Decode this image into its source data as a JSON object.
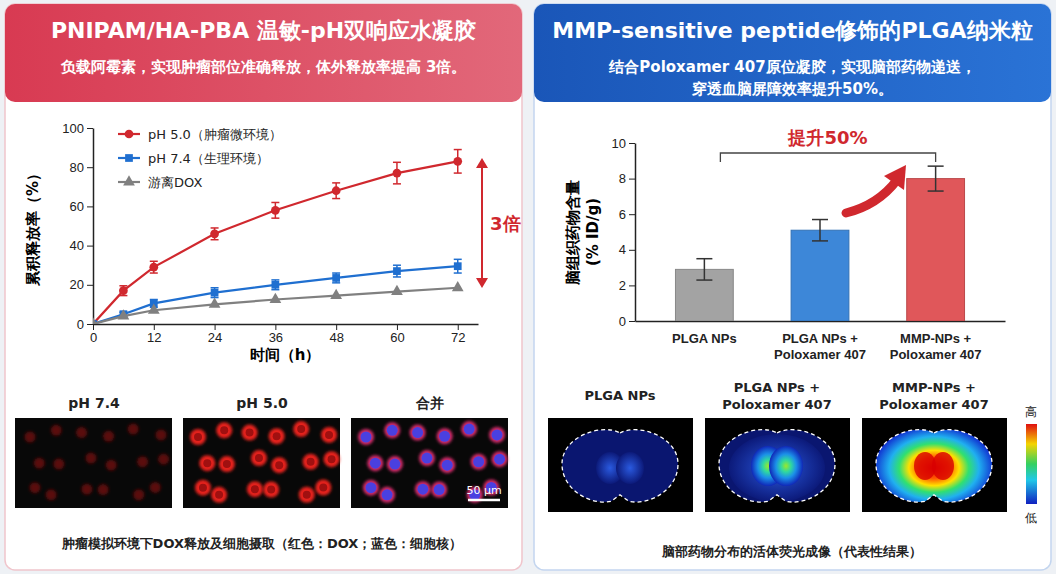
{
  "panels": [
    {
      "title": "PNIPAM/HA-PBA 温敏-pH双响应水凝胶",
      "subtitle": [
        "负载阿霉素，实现肿瘤部位准确释放，体外释放率提高 3倍。"
      ],
      "image_labels": [
        "pH 7.4",
        "pH 5.0",
        "合并"
      ],
      "scale_bar": "50 μm",
      "caption": "肿瘤模拟环境下DOX释放及细胞摄取（红色：DOX；蓝色：细胞核）"
    },
    {
      "title": "MMP-sensitive peptide修饰的PLGA纳米粒",
      "subtitle": [
        "结合Poloxamer 407原位凝胶，实现脑部药物递送，",
        "穿透血脑屏障效率提升50%。"
      ],
      "image_labels": [
        "PLGA NPs",
        "PLGA NPs +\nPoloxamer 407",
        "MMP-NPs +\nPoloxamer 407"
      ],
      "colorbar_labels": [
        "高",
        "低"
      ],
      "caption": "脑部药物分布的活体荧光成像（代表性结果）"
    }
  ],
  "chart_data": [
    {
      "type": "line",
      "x_label": "时间（h）",
      "y_label": "累积释放率（%）",
      "annotation": "3倍",
      "x": [
        0,
        6,
        12,
        24,
        36,
        48,
        60,
        72
      ],
      "xlim": [
        0,
        76
      ],
      "xticks": [
        0,
        12,
        24,
        36,
        48,
        60,
        72
      ],
      "ylim": [
        0,
        100
      ],
      "yticks": [
        0,
        20,
        40,
        60,
        80,
        100
      ],
      "grid": false,
      "legend": "upper left",
      "series": [
        {
          "name": "pH 5.0（肿瘤微环境）",
          "color": "#d0282e",
          "marker": "circle",
          "values": [
            0,
            17,
            29,
            46,
            58,
            68,
            77,
            83
          ],
          "errors": [
            0,
            2.5,
            3,
            3,
            4,
            4,
            5.5,
            6
          ]
        },
        {
          "name": "pH 7.4（生理环境）",
          "color": "#1f6fd0",
          "marker": "square",
          "values": [
            0,
            5,
            10.5,
            16,
            20,
            23.5,
            27,
            29.5
          ],
          "errors": [
            0,
            1,
            2,
            2.5,
            2.5,
            2.5,
            3,
            3.5
          ]
        },
        {
          "name": "游离DOX",
          "color": "#808080",
          "marker": "triangle",
          "values": [
            0,
            4,
            7,
            10,
            12.5,
            14.5,
            16.5,
            18.5
          ]
        }
      ]
    },
    {
      "type": "bar",
      "y_label": "脑组织药物含量\n(% ID/g)",
      "annotation": "提升50%",
      "categories": [
        "PLGA NPs",
        "PLGA NPs +\nPoloxamer 407",
        "MMP-NPs +\nPoloxamer 407"
      ],
      "values": [
        2.9,
        5.1,
        8.0
      ],
      "errors": [
        0.6,
        0.6,
        0.7
      ],
      "colors": [
        "#a3a3a3",
        "#3d87d8",
        "#e0575a"
      ],
      "ylim": [
        0,
        10
      ],
      "yticks": [
        0,
        2,
        4,
        6,
        8,
        10
      ],
      "grid": false
    }
  ]
}
